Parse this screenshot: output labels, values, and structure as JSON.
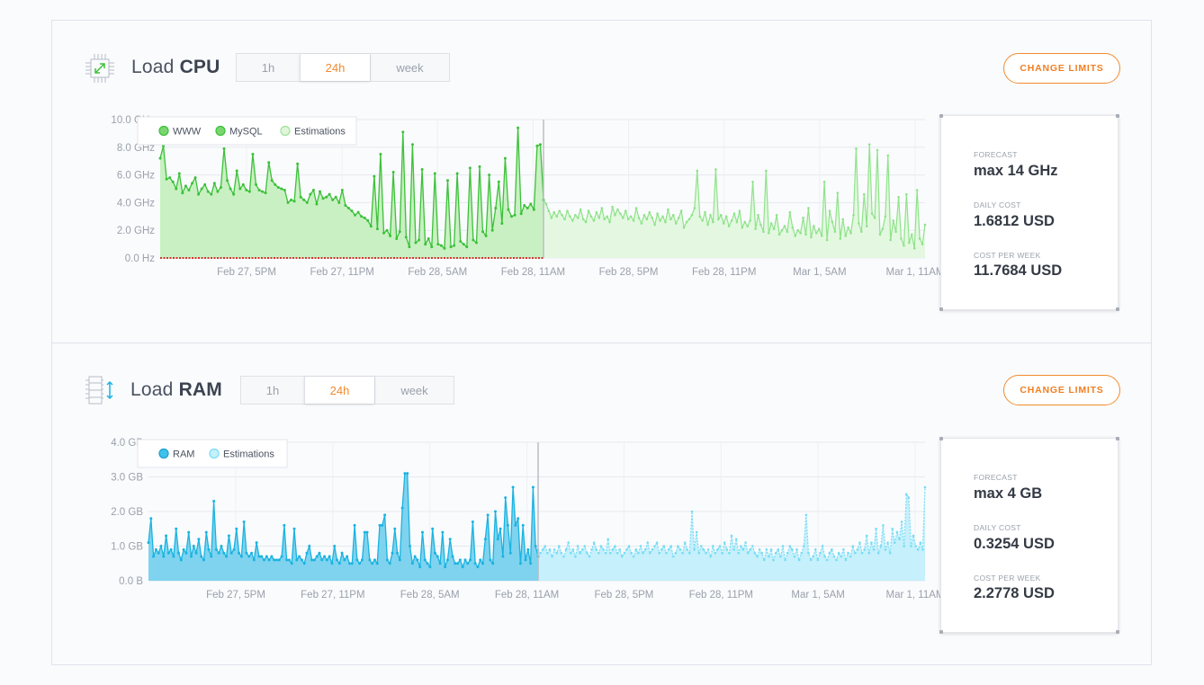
{
  "cpu": {
    "title_prefix": "Load ",
    "title_bold": "CPU",
    "icon": "cpu-chip-icon",
    "tabs": [
      "1h",
      "24h",
      "week"
    ],
    "active_tab": "24h",
    "change_limits_label": "CHANGE LIMITS",
    "card": {
      "forecast_label": "FORECAST",
      "forecast_value": "max 14 GHz",
      "daily_cost_label": "DAILY COST",
      "daily_cost_value": "1.6812 USD",
      "weekly_cost_label": "COST PER WEEK",
      "weekly_cost_value": "11.7684 USD"
    }
  },
  "ram": {
    "title_prefix": "Load ",
    "title_bold": "RAM",
    "icon": "ram-memory-icon",
    "tabs": [
      "1h",
      "24h",
      "week"
    ],
    "active_tab": "24h",
    "change_limits_label": "CHANGE LIMITS",
    "card": {
      "forecast_label": "FORECAST",
      "forecast_value": "max 4 GB",
      "daily_cost_label": "DAILY COST",
      "daily_cost_value": "0.3254 USD",
      "weekly_cost_label": "COST PER WEEK",
      "weekly_cost_value": "2.2778 USD"
    }
  },
  "colors": {
    "accent": "#f28b2e",
    "cpu_line": "#3cc13a",
    "cpu_fill": "#c9f0c2",
    "cpu_est_line": "#8fe38a",
    "cpu_est_fill": "#e4f8e1",
    "mysql_line": "#d0342c",
    "ram_line": "#1ab3e0",
    "ram_fill": "#7fd3ef",
    "ram_est_line": "#77dcf5",
    "ram_est_fill": "#c6f0fb"
  },
  "chart_data": [
    {
      "type": "area",
      "name": "cpu-load",
      "yticks": [
        "10.0 GHz",
        "8.0 GHz",
        "6.0 GHz",
        "4.0 GHz",
        "2.0 GHz",
        "0.0 Hz"
      ],
      "ylim": [
        0,
        10
      ],
      "xticks": [
        "Feb 27, 5PM",
        "Feb 27, 11PM",
        "Feb 28, 5AM",
        "Feb 28, 11AM",
        "Feb 28, 5PM",
        "Feb 28, 11PM",
        "Mar 1, 5AM",
        "Mar 1, 11AM"
      ],
      "legend": [
        "WWW",
        "MySQL",
        "Estimations"
      ],
      "legend_position": "top-left",
      "now_index": 100,
      "series": [
        {
          "name": "WWW",
          "values": [
            7.2,
            8.1,
            5.7,
            5.8,
            5.5,
            5.0,
            6.1,
            4.7,
            5.2,
            4.9,
            5.4,
            5.8,
            4.6,
            5.0,
            5.3,
            4.8,
            4.6,
            5.4,
            4.8,
            5.1,
            7.9,
            5.6,
            5.0,
            4.6,
            6.3,
            5.0,
            5.3,
            4.9,
            4.8,
            7.5,
            5.3,
            4.9,
            4.8,
            4.7,
            6.9,
            5.6,
            5.3,
            5.1,
            5.0,
            4.9,
            4.0,
            4.2,
            4.1,
            6.8,
            4.4,
            4.2,
            4.0,
            4.6,
            4.9,
            3.9,
            4.8,
            4.3,
            4.4,
            4.6,
            4.2,
            4.4,
            4.0,
            4.9,
            3.8,
            3.6,
            3.4,
            3.1,
            3.3,
            3.0,
            2.9,
            2.7,
            2.3,
            5.9,
            2.1,
            7.5,
            1.8,
            2.0,
            1.6,
            6.2,
            1.4,
            1.9,
            9.1,
            1.5,
            0.8,
            8.2,
            1.1,
            1.3,
            6.4,
            1.0,
            1.4,
            0.8,
            6.1,
            1.0,
            0.9,
            0.7,
            5.6,
            0.8,
            0.9,
            6.1,
            1.2,
            1.0,
            0.8,
            6.5,
            1.3,
            1.1,
            6.6,
            1.9,
            1.6,
            6.0,
            2.0,
            3.6,
            5.5,
            2.5,
            7.2,
            3.5,
            3.0,
            3.1,
            9.4,
            3.2,
            3.8,
            3.6,
            3.9,
            3.5,
            8.1,
            8.2,
            4.2
          ],
          "mysql": 0.0
        },
        {
          "name": "Estimations",
          "values": [
            4.2,
            3.9,
            3.4,
            2.9,
            3.3,
            3.0,
            3.4,
            3.1,
            2.8,
            3.4,
            3.0,
            2.7,
            3.1,
            2.9,
            3.5,
            2.8,
            2.6,
            3.4,
            3.0,
            2.7,
            3.3,
            2.9,
            3.6,
            2.8,
            3.0,
            2.6,
            3.7,
            3.1,
            3.5,
            3.2,
            2.9,
            3.4,
            2.8,
            3.0,
            2.7,
            3.6,
            2.9,
            2.5,
            3.1,
            2.8,
            3.3,
            2.9,
            2.4,
            3.2,
            2.7,
            3.0,
            2.6,
            3.5,
            2.8,
            3.1,
            2.5,
            2.9,
            3.4,
            2.2,
            2.6,
            2.8,
            3.1,
            3.6,
            6.3,
            3.0,
            2.7,
            3.3,
            2.4,
            3.1,
            2.6,
            6.4,
            2.8,
            3.1,
            2.5,
            3.0,
            2.3,
            2.7,
            3.2,
            2.6,
            3.4,
            2.2,
            2.6,
            2.3,
            2.7,
            5.5,
            2.1,
            3.1,
            2.4,
            1.9,
            6.3,
            1.8,
            2.5,
            2.1,
            3.1,
            1.7,
            2.0,
            2.3,
            1.9,
            3.3,
            2.2,
            1.6,
            2.0,
            1.8,
            2.9,
            1.7,
            3.6,
            1.5,
            2.3,
            1.8,
            2.1,
            1.6,
            5.5,
            1.3,
            3.4,
            2.6,
            1.9,
            4.7,
            1.4,
            2.8,
            1.6,
            2.2,
            1.8,
            3.1,
            7.9,
            2.5,
            1.9,
            4.6,
            2.3,
            8.2,
            3.2,
            2.9,
            7.8,
            1.7,
            2.1,
            3.0,
            7.4,
            1.3,
            2.7,
            1.9,
            4.4,
            1.4,
            0.9,
            4.6,
            1.1,
            1.7,
            0.7,
            4.9,
            1.4,
            1.0,
            2.4
          ]
        }
      ]
    },
    {
      "type": "area",
      "name": "ram-load",
      "yticks": [
        "4.0 GB",
        "3.0 GB",
        "2.0 GB",
        "1.0 GB",
        "0.0 B"
      ],
      "ylim": [
        0,
        4
      ],
      "xticks": [
        "Feb 27, 5PM",
        "Feb 27, 11PM",
        "Feb 28, 5AM",
        "Feb 28, 11AM",
        "Feb 28, 5PM",
        "Feb 28, 11PM",
        "Mar 1, 5AM",
        "Mar 1, 11AM"
      ],
      "legend": [
        "RAM",
        "Estimations"
      ],
      "legend_position": "top-left",
      "series": [
        {
          "name": "RAM",
          "values": [
            1.1,
            1.8,
            0.7,
            0.9,
            0.8,
            1.0,
            0.7,
            1.3,
            0.8,
            0.9,
            0.7,
            1.5,
            0.8,
            0.6,
            0.9,
            0.8,
            1.4,
            0.7,
            1.0,
            0.8,
            1.2,
            0.7,
            0.6,
            1.4,
            0.9,
            0.7,
            2.3,
            0.9,
            0.8,
            1.0,
            0.8,
            0.7,
            1.3,
            0.8,
            0.9,
            1.5,
            0.8,
            0.7,
            1.7,
            0.8,
            0.7,
            0.8,
            0.6,
            1.1,
            0.7,
            0.7,
            0.6,
            0.7,
            0.6,
            0.7,
            0.6,
            0.6,
            0.6,
            0.7,
            1.6,
            0.6,
            0.6,
            0.5,
            1.5,
            0.6,
            0.7,
            0.6,
            0.5,
            0.8,
            1.0,
            0.6,
            0.6,
            0.7,
            0.8,
            0.6,
            0.7,
            0.6,
            0.7,
            0.5,
            1.0,
            0.6,
            0.5,
            0.8,
            0.6,
            0.7,
            0.5,
            0.5,
            1.6,
            0.6,
            0.5,
            0.6,
            1.4,
            1.4,
            0.6,
            0.5,
            0.6,
            0.5,
            1.6,
            1.6,
            1.9,
            0.6,
            0.5,
            0.8,
            1.5,
            0.8,
            0.6,
            2.1,
            3.1,
            3.1,
            1.0,
            0.5,
            0.7,
            0.6,
            0.4,
            1.4,
            0.6,
            0.5,
            0.4,
            1.5,
            0.8,
            0.7,
            0.5,
            1.4,
            0.4,
            0.6,
            1.2,
            0.7,
            0.5,
            0.5,
            0.6,
            0.4,
            0.6,
            0.5,
            0.6,
            1.7,
            0.5,
            0.4,
            0.6,
            0.5,
            1.2,
            1.9,
            0.6,
            0.5,
            2.0,
            1.2,
            1.5,
            0.7,
            2.4,
            1.6,
            0.8,
            2.7,
            1.6,
            1.8,
            0.5,
            1.6,
            0.6,
            0.9,
            0.5,
            2.7,
            1.0,
            0.7
          ],
          "now_index": 151
        },
        {
          "name": "Estimations",
          "values": [
            0.9,
            0.8,
            0.9,
            1.0,
            0.8,
            0.9,
            0.7,
            0.9,
            0.8,
            1.0,
            0.8,
            0.7,
            0.9,
            1.1,
            0.8,
            0.9,
            0.7,
            1.0,
            0.8,
            0.9,
            1.0,
            0.8,
            0.7,
            0.9,
            1.1,
            0.9,
            0.8,
            1.0,
            0.9,
            0.8,
            1.2,
            0.8,
            0.9,
            1.0,
            0.8,
            0.9,
            0.7,
            0.8,
            0.9,
            1.0,
            0.8,
            0.7,
            0.9,
            0.8,
            1.0,
            0.8,
            0.9,
            1.1,
            0.8,
            0.9,
            1.0,
            1.1,
            0.8,
            0.9,
            1.0,
            0.8,
            0.9,
            1.0,
            0.7,
            0.8,
            1.0,
            0.9,
            0.8,
            1.1,
            0.9,
            0.8,
            2.0,
            0.9,
            1.4,
            0.8,
            1.0,
            0.9,
            0.8,
            0.9,
            0.7,
            1.0,
            0.8,
            0.9,
            1.0,
            0.8,
            1.1,
            0.9,
            0.8,
            1.3,
            0.9,
            1.2,
            0.8,
            1.0,
            0.9,
            1.1,
            0.8,
            0.9,
            1.0,
            0.8,
            0.7,
            0.9,
            0.8,
            0.6,
            0.9,
            0.7,
            0.9,
            0.6,
            0.8,
            0.9,
            0.7,
            1.0,
            0.6,
            0.8,
            1.0,
            0.9,
            0.7,
            0.9,
            0.6,
            0.8,
            1.0,
            1.9,
            0.8,
            0.6,
            0.7,
            0.9,
            0.6,
            0.8,
            1.0,
            0.7,
            0.6,
            0.8,
            0.9,
            0.7,
            0.6,
            0.8,
            0.7,
            0.9,
            0.6,
            0.8,
            0.7,
            1.0,
            0.8,
            0.9,
            1.1,
            0.8,
            0.9,
            1.3,
            0.8,
            1.1,
            0.9,
            1.5,
            0.8,
            1.0,
            1.6,
            0.9,
            1.1,
            0.8,
            1.5,
            1.1,
            1.4,
            1.2,
            1.7,
            1.0,
            2.5,
            2.4,
            1.0,
            1.3,
            1.0,
            0.9,
            1.1,
            0.9,
            2.7
          ]
        }
      ]
    }
  ]
}
